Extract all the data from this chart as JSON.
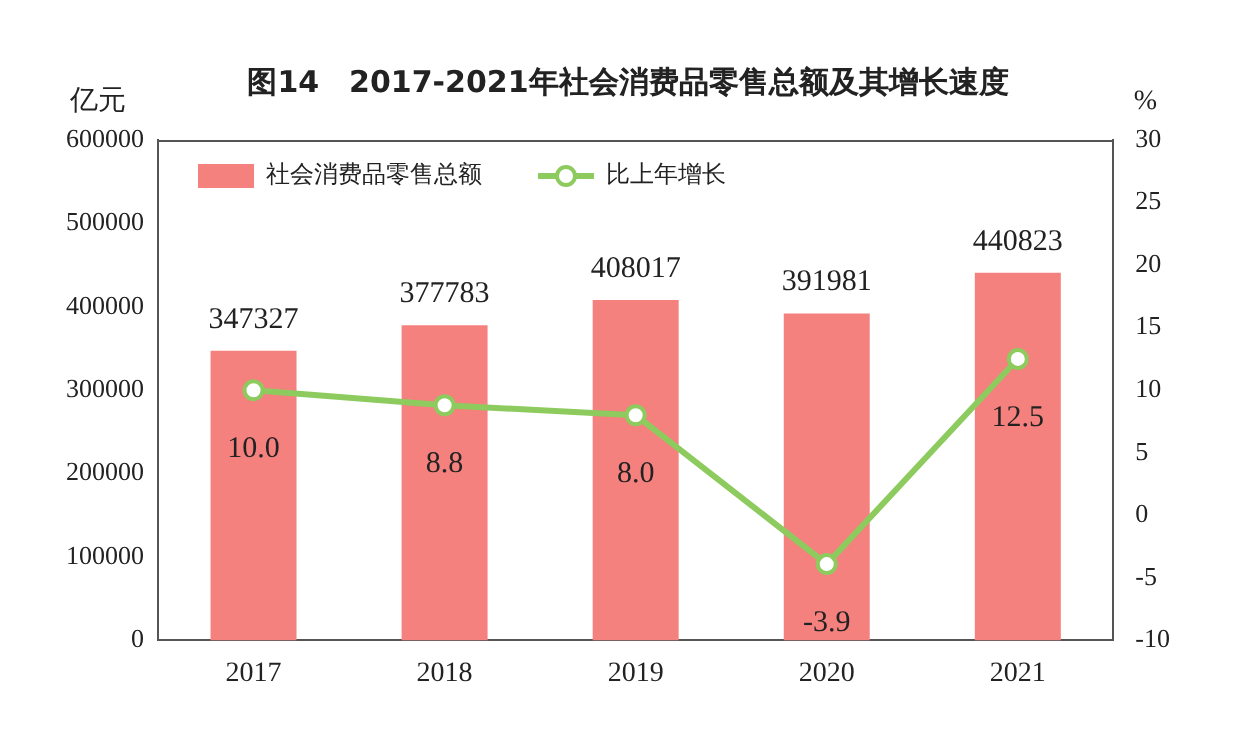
{
  "chart_data": {
    "type": "bar",
    "title": "图14　2017-2021年社会消费品零售总额及其增长速度",
    "ylabel": "亿元",
    "y2label": "%",
    "categories": [
      "2017",
      "2018",
      "2019",
      "2020",
      "2021"
    ],
    "series": [
      {
        "name": "社会消费品零售总额",
        "color": "#f4817d",
        "values": [
          347327,
          377783,
          408017,
          391981,
          440823
        ]
      },
      {
        "name": "比上年增长",
        "type": "line",
        "axis": "y2",
        "color": "#8dcb5e",
        "marker": "circle",
        "values": [
          10.0,
          8.8,
          8.0,
          -3.9,
          12.5
        ],
        "value_labels": [
          "10.0",
          "8.8",
          "8.0",
          "-3.9",
          "12.5"
        ]
      }
    ],
    "data_labels": true,
    "ylim": [
      0,
      600000
    ],
    "yticks": [
      0,
      100000,
      200000,
      300000,
      400000,
      500000,
      600000
    ],
    "y2lim": [
      -10,
      30
    ],
    "y2ticks": [
      -10,
      -5,
      0,
      5,
      10,
      15,
      20,
      25,
      30
    ],
    "grid": false,
    "legend": "top left"
  }
}
